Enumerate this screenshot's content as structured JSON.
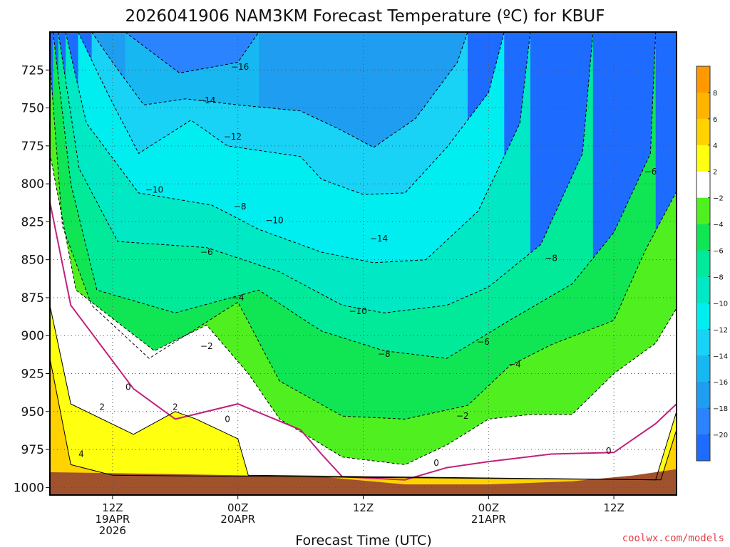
{
  "chart_data": {
    "type": "contour",
    "title": "2026041906 NAM3KM Forecast Temperature (ºC) for KBUF",
    "xlabel": "Forecast Time (UTC)",
    "ylabel": "",
    "credit": "coolwx.com/models",
    "credit_color": "#e0404a",
    "y_range_hpa": [
      700,
      1005
    ],
    "x_range_hours": [
      0,
      60
    ],
    "y_ticks": [
      {
        "value": 725,
        "label": "725"
      },
      {
        "value": 750,
        "label": "750"
      },
      {
        "value": 775,
        "label": "775"
      },
      {
        "value": 800,
        "label": "800"
      },
      {
        "value": 825,
        "label": "825"
      },
      {
        "value": 850,
        "label": "850"
      },
      {
        "value": 875,
        "label": "875"
      },
      {
        "value": 900,
        "label": "900"
      },
      {
        "value": 925,
        "label": "925"
      },
      {
        "value": 950,
        "label": "950"
      },
      {
        "value": 975,
        "label": "975"
      },
      {
        "value": 1000,
        "label": "1000"
      }
    ],
    "x_ticks": [
      {
        "hour": 6,
        "lines": [
          "12Z",
          "19APR",
          "2026"
        ]
      },
      {
        "hour": 18,
        "lines": [
          "00Z",
          "20APR"
        ]
      },
      {
        "hour": 30,
        "lines": [
          "12Z"
        ]
      },
      {
        "hour": 42,
        "lines": [
          "00Z",
          "21APR"
        ]
      },
      {
        "hour": 54,
        "lines": [
          "12Z"
        ]
      }
    ],
    "levels_c": [
      -20,
      -18,
      -16,
      -14,
      -12,
      -10,
      -8,
      -6,
      -4,
      -2,
      0,
      2,
      4,
      6,
      8
    ],
    "colorbar": [
      {
        "from": -22,
        "to": -20,
        "color": "#1e6bff"
      },
      {
        "from": -20,
        "to": -18,
        "color": "#2b83ff"
      },
      {
        "from": -18,
        "to": -16,
        "color": "#1f9df0"
      },
      {
        "from": -16,
        "to": -14,
        "color": "#17b8f2"
      },
      {
        "from": -14,
        "to": -12,
        "color": "#18d3f6"
      },
      {
        "from": -12,
        "to": -10,
        "color": "#00eef0"
      },
      {
        "from": -10,
        "to": -8,
        "color": "#00e8c4"
      },
      {
        "from": -8,
        "to": -6,
        "color": "#00ea9a"
      },
      {
        "from": -6,
        "to": -4,
        "color": "#10e654"
      },
      {
        "from": -4,
        "to": -2,
        "color": "#50f020"
      },
      {
        "from": -2,
        "to": 2,
        "color": "#ffffff"
      },
      {
        "from": 2,
        "to": 4,
        "color": "#ffff10"
      },
      {
        "from": 4,
        "to": 6,
        "color": "#ffd200"
      },
      {
        "from": 6,
        "to": 8,
        "color": "#ffb400"
      },
      {
        "from": 8,
        "to": 10,
        "color": "#ff9900"
      }
    ],
    "colorbar_labels": [
      "8",
      "6",
      "4",
      "2",
      "−2",
      "−4",
      "−6",
      "−8",
      "−10",
      "−12",
      "−14",
      "−16",
      "−18",
      "−20"
    ],
    "series": [
      {
        "name": "-16C isotherm",
        "points": [
          [
            7.2,
            700
          ],
          [
            12.4,
            727
          ],
          [
            18,
            720
          ],
          [
            20,
            700
          ]
        ]
      },
      {
        "name": "-14C isotherm",
        "points": [
          [
            4,
            700
          ],
          [
            6,
            720
          ],
          [
            9,
            748
          ],
          [
            13,
            744
          ],
          [
            18,
            748
          ],
          [
            24,
            752
          ],
          [
            28,
            765
          ],
          [
            31,
            776
          ],
          [
            35,
            757
          ],
          [
            39,
            720
          ],
          [
            40,
            700
          ]
        ]
      },
      {
        "name": "-12C isotherm",
        "points": [
          [
            2.7,
            700
          ],
          [
            5.5,
            740
          ],
          [
            8.5,
            780
          ],
          [
            13.5,
            758
          ],
          [
            17,
            775
          ],
          [
            24,
            782
          ],
          [
            26,
            797
          ],
          [
            30,
            807
          ],
          [
            34,
            806
          ],
          [
            38,
            776
          ],
          [
            42,
            740
          ],
          [
            43.5,
            700
          ]
        ]
      },
      {
        "name": "-10C isotherm",
        "points": [
          [
            1.5,
            700
          ],
          [
            3.5,
            760
          ],
          [
            8.5,
            806
          ],
          [
            15.5,
            814
          ],
          [
            20,
            830
          ],
          [
            26,
            845
          ],
          [
            31,
            852
          ],
          [
            36,
            850
          ],
          [
            41,
            818
          ],
          [
            45,
            760
          ],
          [
            46,
            700
          ]
        ]
      },
      {
        "name": "-8C isotherm",
        "points": [
          [
            0.8,
            700
          ],
          [
            2.8,
            790
          ],
          [
            6.5,
            838
          ],
          [
            15,
            842
          ],
          [
            22,
            858
          ],
          [
            28,
            880
          ],
          [
            32,
            885
          ],
          [
            38,
            880
          ],
          [
            42,
            868
          ],
          [
            47,
            840
          ],
          [
            51,
            780
          ],
          [
            52,
            700
          ]
        ]
      },
      {
        "name": "-6C isotherm",
        "points": [
          [
            0.3,
            700
          ],
          [
            2,
            800
          ],
          [
            4.5,
            870
          ],
          [
            12,
            885
          ],
          [
            20,
            870
          ],
          [
            26,
            897
          ],
          [
            32,
            910
          ],
          [
            38,
            915
          ],
          [
            44,
            890
          ],
          [
            50,
            866
          ],
          [
            54,
            832
          ],
          [
            57.5,
            780
          ],
          [
            58,
            700
          ]
        ]
      },
      {
        "name": "-4C isotherm",
        "points": [
          [
            0,
            720
          ],
          [
            1.2,
            828
          ],
          [
            4,
            880
          ],
          [
            9.5,
            915
          ],
          [
            18,
            878
          ],
          [
            22,
            930
          ],
          [
            28,
            953
          ],
          [
            34,
            955
          ],
          [
            40,
            946
          ],
          [
            44,
            920
          ],
          [
            48,
            906
          ],
          [
            54,
            890
          ],
          [
            57,
            844
          ],
          [
            60,
            805
          ]
        ]
      },
      {
        "name": "-2C isotherm",
        "points": [
          [
            0,
            780
          ],
          [
            2.5,
            870
          ],
          [
            10,
            910
          ],
          [
            15,
            893
          ],
          [
            19,
            925
          ],
          [
            22,
            955
          ],
          [
            28,
            980
          ],
          [
            34,
            985
          ],
          [
            38,
            972
          ],
          [
            42,
            955
          ],
          [
            46,
            952
          ],
          [
            50,
            952
          ],
          [
            54,
            925
          ],
          [
            58,
            905
          ],
          [
            60,
            882
          ]
        ]
      },
      {
        "name": "0C isotherm",
        "points": [
          [
            0,
            812
          ],
          [
            2,
            880
          ],
          [
            8,
            935
          ],
          [
            12,
            955
          ],
          [
            18,
            945
          ],
          [
            24,
            962
          ],
          [
            26,
            978
          ],
          [
            28,
            993
          ],
          [
            34,
            995
          ],
          [
            38,
            987
          ],
          [
            42,
            983
          ],
          [
            48,
            978
          ],
          [
            54,
            977
          ],
          [
            58,
            958
          ],
          [
            60,
            945
          ]
        ]
      },
      {
        "name": "2C isotherm",
        "points": [
          [
            0,
            880
          ],
          [
            2,
            945
          ],
          [
            8,
            965
          ],
          [
            12,
            950
          ],
          [
            14,
            955
          ],
          [
            18,
            968
          ],
          [
            19,
            992
          ],
          [
            58,
            995
          ],
          [
            60,
            950
          ]
        ]
      },
      {
        "name": "4C isotherm",
        "points": [
          [
            0,
            915
          ],
          [
            2,
            985
          ],
          [
            6,
            992
          ],
          [
            58.5,
            995
          ],
          [
            60,
            962
          ]
        ]
      },
      {
        "name": "surface",
        "points": [
          [
            0,
            990
          ],
          [
            10,
            991
          ],
          [
            18,
            992
          ],
          [
            26,
            993
          ],
          [
            34,
            998
          ],
          [
            42,
            998
          ],
          [
            50,
            996
          ],
          [
            56,
            992
          ],
          [
            60,
            988
          ]
        ]
      }
    ],
    "contour_labels": [
      {
        "text": "−16",
        "hour": 18.2,
        "hpa": 723
      },
      {
        "text": "−14",
        "hour": 15.0,
        "hpa": 745
      },
      {
        "text": "−12",
        "hour": 17.5,
        "hpa": 769
      },
      {
        "text": "−10",
        "hour": 10.0,
        "hpa": 804
      },
      {
        "text": "−8",
        "hour": 18.2,
        "hpa": 815
      },
      {
        "text": "−10",
        "hour": 21.5,
        "hpa": 824
      },
      {
        "text": "−6",
        "hour": 15.0,
        "hpa": 845
      },
      {
        "text": "−14",
        "hour": 31.5,
        "hpa": 836
      },
      {
        "text": "−8",
        "hour": 48.0,
        "hpa": 849
      },
      {
        "text": "−6",
        "hour": 57.5,
        "hpa": 792
      },
      {
        "text": "−4",
        "hour": 18.0,
        "hpa": 875
      },
      {
        "text": "−10",
        "hour": 29.5,
        "hpa": 884
      },
      {
        "text": "−2",
        "hour": 15.0,
        "hpa": 907
      },
      {
        "text": "−8",
        "hour": 32.0,
        "hpa": 912
      },
      {
        "text": "−6",
        "hour": 41.5,
        "hpa": 904
      },
      {
        "text": "−4",
        "hour": 44.5,
        "hpa": 919
      },
      {
        "text": "−2",
        "hour": 39.5,
        "hpa": 953
      },
      {
        "text": "0",
        "hour": 7.5,
        "hpa": 934
      },
      {
        "text": "2",
        "hour": 5.0,
        "hpa": 947
      },
      {
        "text": "2",
        "hour": 12.0,
        "hpa": 947
      },
      {
        "text": "0",
        "hour": 17.0,
        "hpa": 955
      },
      {
        "text": "4",
        "hour": 3.0,
        "hpa": 978
      },
      {
        "text": "0",
        "hour": 37.0,
        "hpa": 984
      },
      {
        "text": "0",
        "hour": 53.5,
        "hpa": 976
      }
    ]
  }
}
